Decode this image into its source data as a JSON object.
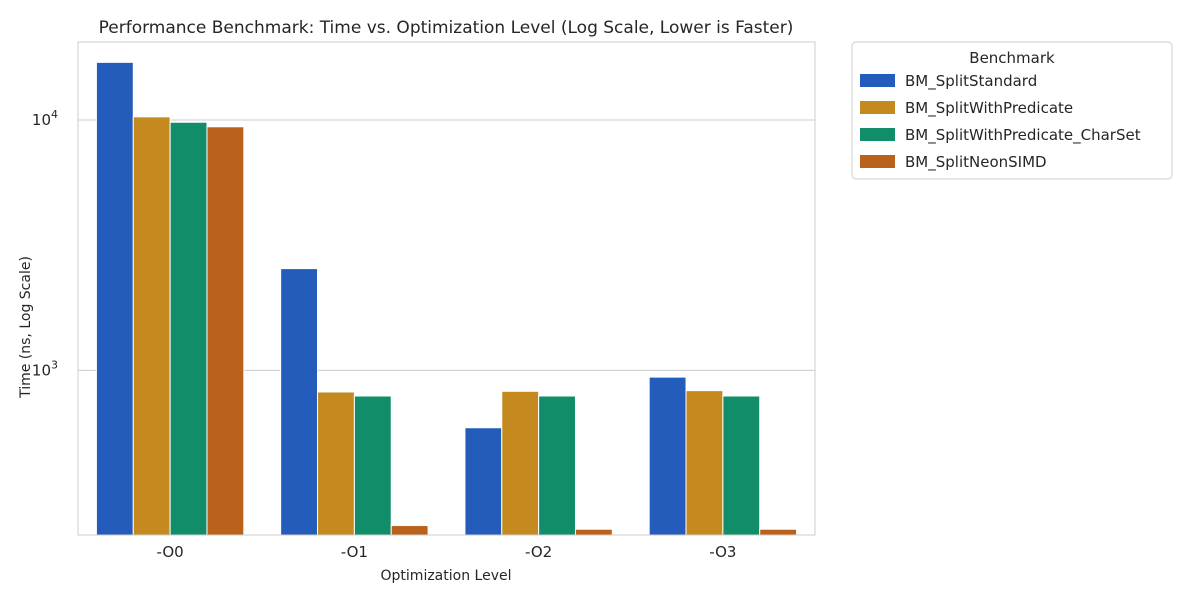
{
  "chart_data": {
    "type": "bar",
    "title": "Performance Benchmark: Time vs. Optimization Level (Log Scale, Lower is Faster)",
    "xlabel": "Optimization Level",
    "ylabel": "Time (ns, Log Scale)",
    "categories": [
      "-O0",
      "-O1",
      "-O2",
      "-O3"
    ],
    "y_scale": "log",
    "ylim": [
      220,
      20500
    ],
    "y_ticks": [
      {
        "value": 1000,
        "base": "10",
        "exp": "3"
      },
      {
        "value": 10000,
        "base": "10",
        "exp": "4"
      }
    ],
    "grid": "horizontal",
    "legend": {
      "title": "Benchmark",
      "placement": "outside-right"
    },
    "series": [
      {
        "name": "BM_SplitStandard",
        "color": "#235cba",
        "values": [
          17000,
          2550,
          590,
          940
        ]
      },
      {
        "name": "BM_SplitWithPredicate",
        "color": "#c48a20",
        "values": [
          10300,
          820,
          825,
          830
        ]
      },
      {
        "name": "BM_SplitWithPredicate_CharSet",
        "color": "#128d69",
        "values": [
          9800,
          790,
          790,
          790
        ]
      },
      {
        "name": "BM_SplitNeonSIMD",
        "color": "#ba611b",
        "values": [
          9400,
          240,
          232,
          232
        ]
      }
    ]
  }
}
